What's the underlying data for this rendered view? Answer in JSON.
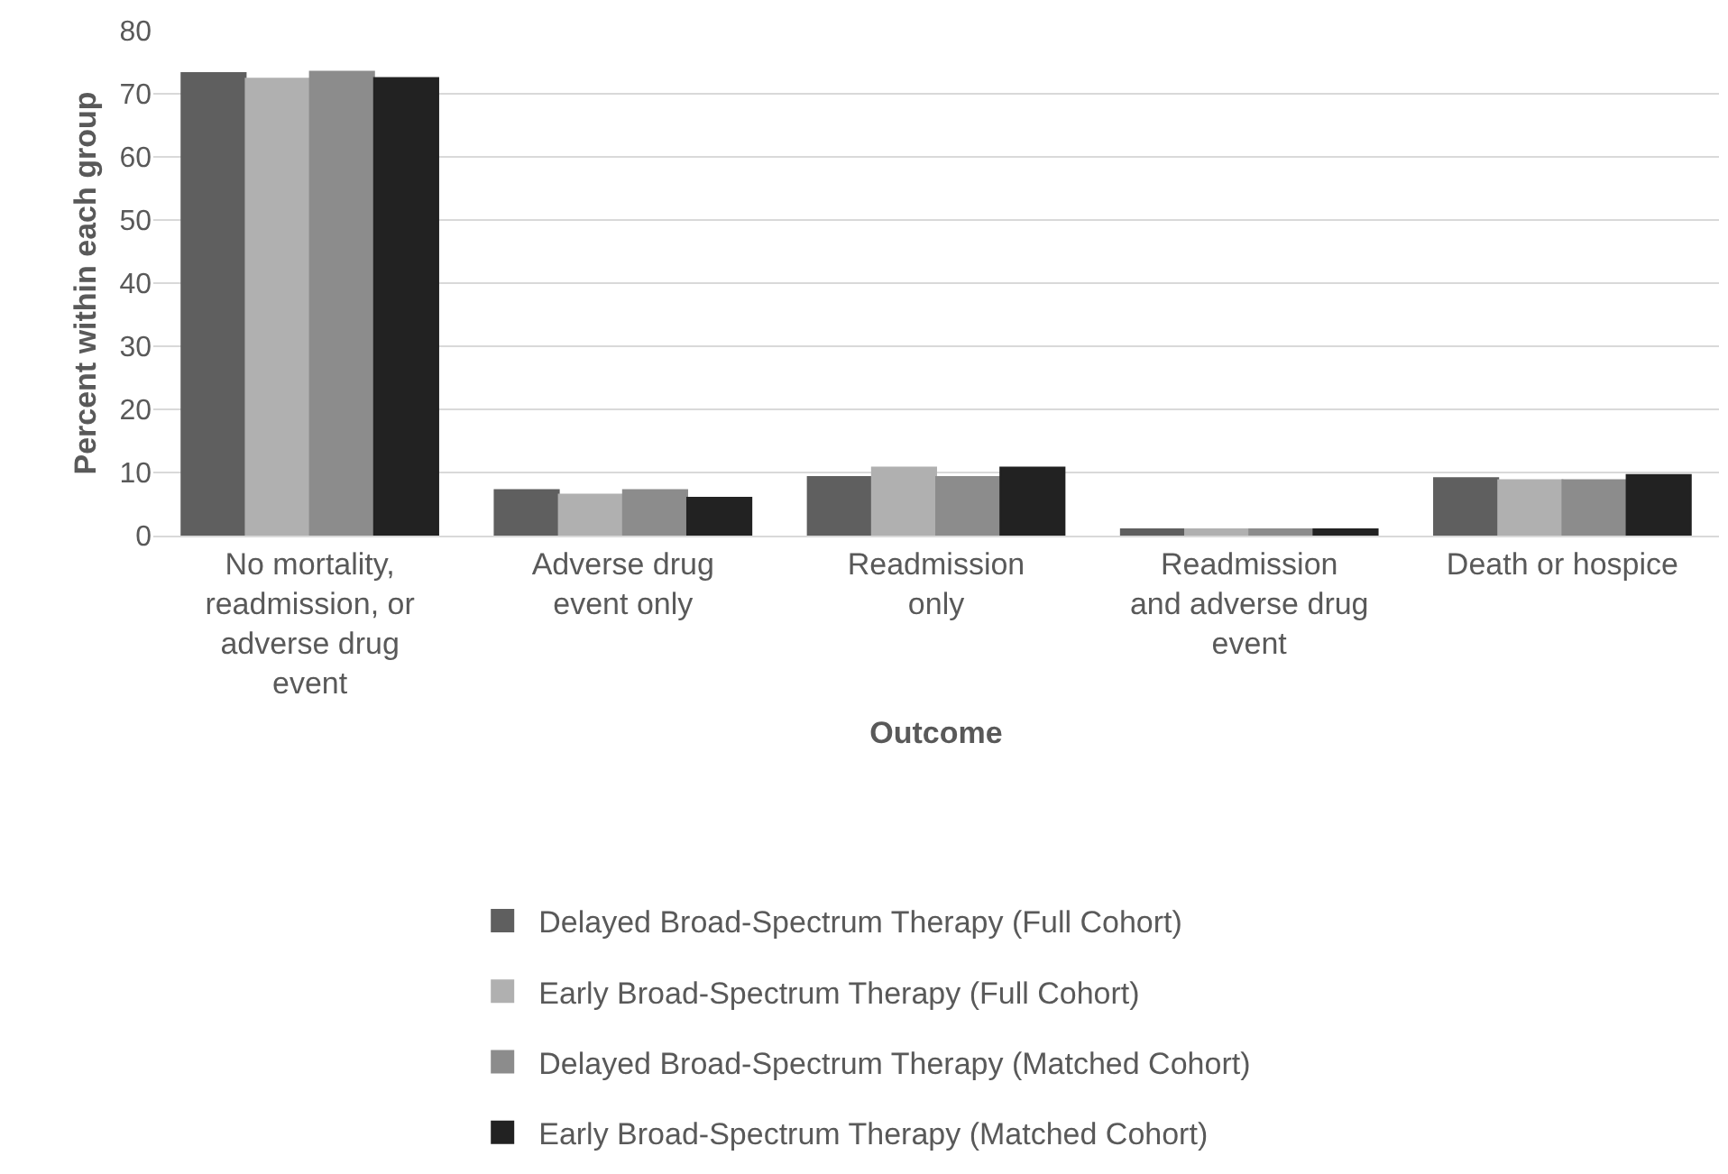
{
  "chart_data": {
    "type": "bar",
    "xlabel": "Outcome",
    "ylabel": "Percent within each group",
    "categories": [
      "No mortality,\nreadmission, or\nadverse drug\nevent",
      "Adverse drug\nevent only",
      "Readmission\nonly",
      "Readmission\nand adverse drug\nevent",
      "Death or hospice"
    ],
    "series": [
      {
        "name": "Delayed Broad-Spectrum Therapy (Full Cohort)",
        "color": "#5f5f5f",
        "values": [
          73.3,
          7.2,
          9.3,
          1.0,
          9.1
        ]
      },
      {
        "name": "Early Broad-Spectrum Therapy (Full Cohort)",
        "color": "#b0b0b0",
        "values": [
          72.4,
          6.5,
          10.8,
          1.0,
          8.8
        ]
      },
      {
        "name": "Delayed Broad-Spectrum Therapy (Matched Cohort)",
        "color": "#8c8c8c",
        "values": [
          73.5,
          7.2,
          9.3,
          1.0,
          8.8
        ]
      },
      {
        "name": "Early Broad-Spectrum Therapy (Matched Cohort)",
        "color": "#222222",
        "values": [
          72.5,
          6.0,
          10.8,
          1.0,
          9.6
        ]
      }
    ],
    "ylim": [
      0,
      80
    ],
    "yticks": [
      0,
      10,
      20,
      30,
      40,
      50,
      60,
      70,
      80
    ],
    "grid": "y",
    "legend": "bottom"
  }
}
